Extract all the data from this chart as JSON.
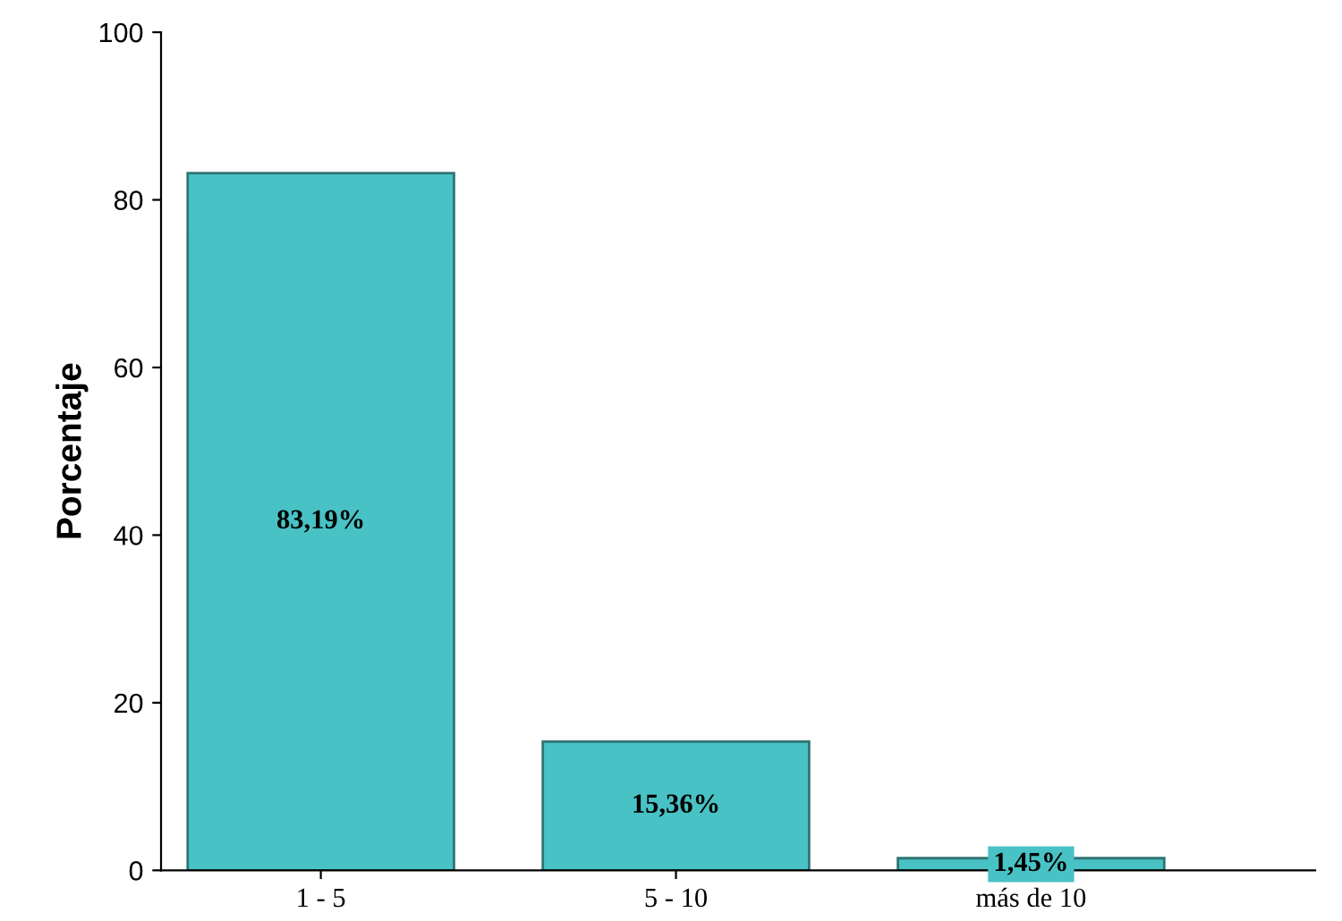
{
  "chart_data": {
    "type": "bar",
    "ylabel": "Porcentaje",
    "categories": [
      "1 - 5",
      "5 - 10",
      "más de 10"
    ],
    "values": [
      83.19,
      15.36,
      1.45
    ],
    "value_labels": [
      "83,19%",
      "15,36%",
      "1,45%"
    ],
    "color": "#48c2c5",
    "ylim": [
      0,
      100
    ],
    "yticks": [
      0,
      20,
      40,
      60,
      80,
      100
    ],
    "grid": false,
    "legend": false
  }
}
